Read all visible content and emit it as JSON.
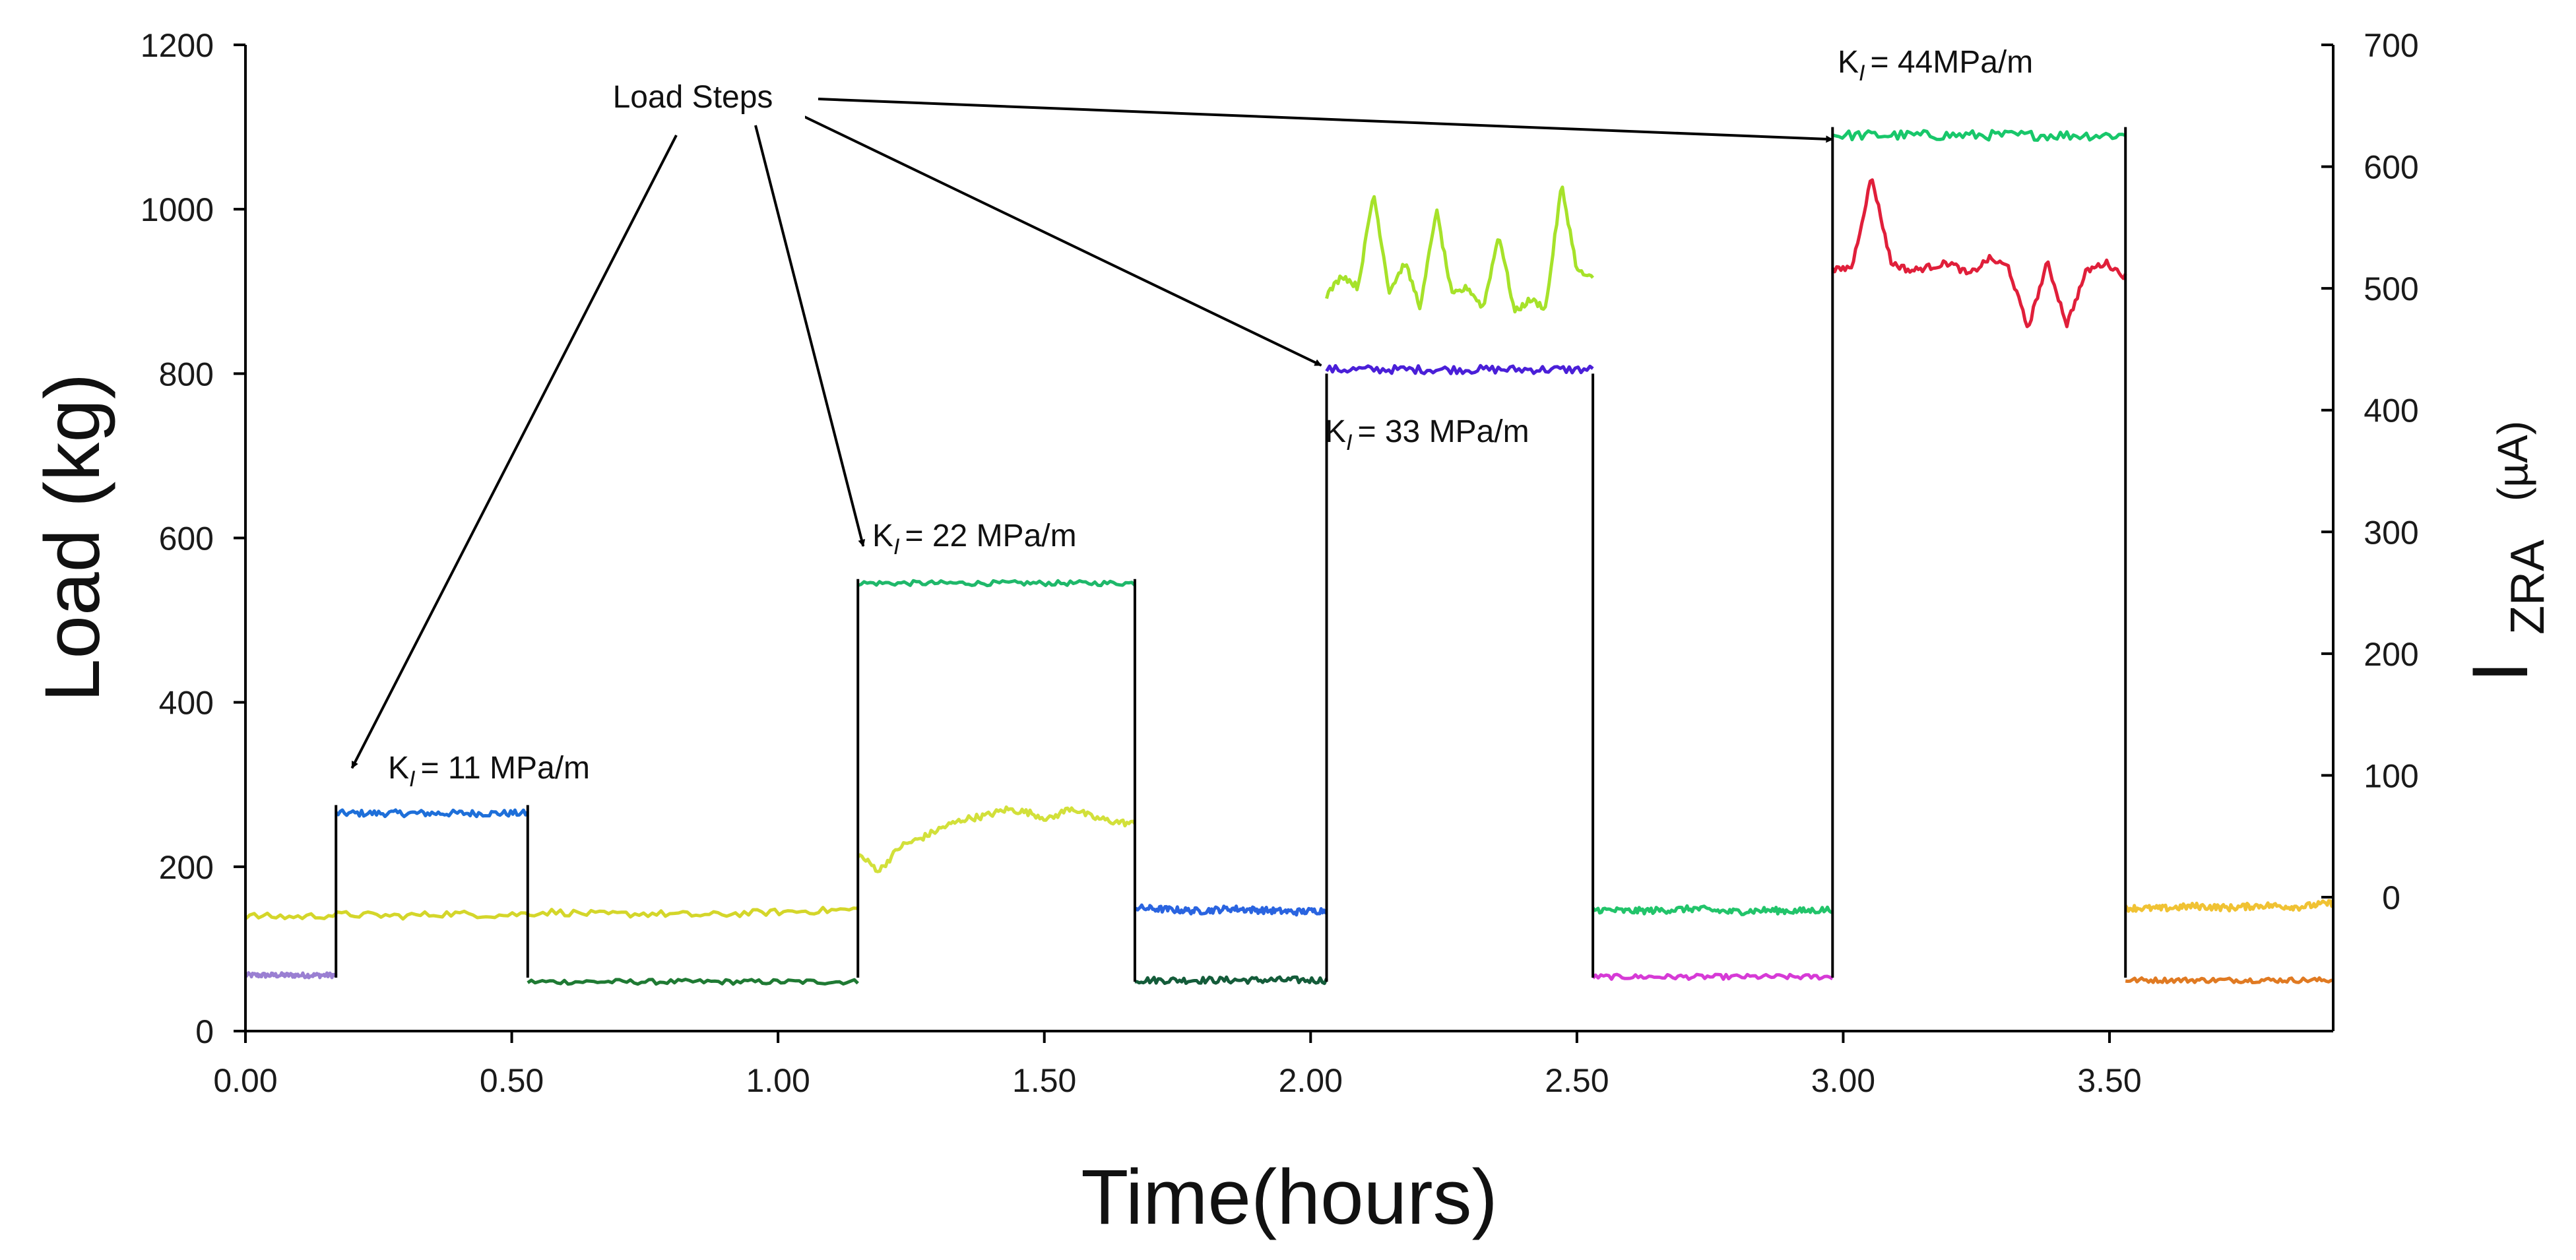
{
  "chart_data": {
    "type": "line",
    "title": "",
    "xlabel": "Time(hours)",
    "ylabel_left": "Load (kg)",
    "ylabel_right": {
      "main": "I",
      "sub": "ZRA",
      "unit": "(µA)"
    },
    "xlim": [
      0,
      3.92
    ],
    "ylim_left": [
      0,
      1200
    ],
    "ylim_right": [
      -110,
      700
    ],
    "x_ticks": [
      {
        "value": 0,
        "label": "0.00"
      },
      {
        "value": 0.5,
        "label": "0.50"
      },
      {
        "value": 1.0,
        "label": "1.00"
      },
      {
        "value": 1.5,
        "label": "1.50"
      },
      {
        "value": 2.0,
        "label": "2.00"
      },
      {
        "value": 2.5,
        "label": "2.50"
      },
      {
        "value": 3.0,
        "label": "3.00"
      },
      {
        "value": 3.5,
        "label": "3.50"
      }
    ],
    "y_left_ticks": [
      {
        "value": 0,
        "label": "0"
      },
      {
        "value": 200,
        "label": "200"
      },
      {
        "value": 400,
        "label": "400"
      },
      {
        "value": 600,
        "label": "600"
      },
      {
        "value": 800,
        "label": "800"
      },
      {
        "value": 1000,
        "label": "1000"
      },
      {
        "value": 1200,
        "label": "1200"
      }
    ],
    "y_right_ticks": [
      {
        "value": 0,
        "label": "0"
      },
      {
        "value": 100,
        "label": "100"
      },
      {
        "value": 200,
        "label": "200"
      },
      {
        "value": 300,
        "label": "300"
      },
      {
        "value": 400,
        "label": "400"
      },
      {
        "value": 500,
        "label": "500"
      },
      {
        "value": 600,
        "label": "600"
      },
      {
        "value": 700,
        "label": "700"
      }
    ],
    "load_profile": {
      "color": "#000000",
      "points": [
        [
          0.17,
          65
        ],
        [
          0.17,
          275
        ],
        [
          0.53,
          275
        ],
        [
          0.53,
          65
        ],
        [
          1.15,
          65
        ],
        [
          1.15,
          550
        ],
        [
          1.67,
          550
        ],
        [
          1.67,
          60
        ],
        [
          2.03,
          60
        ],
        [
          2.03,
          800
        ],
        [
          2.53,
          800
        ],
        [
          2.53,
          65
        ],
        [
          2.98,
          65
        ],
        [
          2.98,
          1100
        ],
        [
          3.53,
          1100
        ],
        [
          3.53,
          65
        ]
      ]
    },
    "load_segments": [
      {
        "x0": 0.0,
        "x1": 0.17,
        "level": 68,
        "noise": 3,
        "color": "#9a7fd2"
      },
      {
        "x0": 0.17,
        "x1": 0.53,
        "level": 265,
        "noise": 4,
        "color": "#1e6fd9"
      },
      {
        "x0": 0.53,
        "x1": 1.15,
        "level": 60,
        "noise": 3,
        "color": "#1f7a33"
      },
      {
        "x0": 1.15,
        "x1": 1.67,
        "level": 545,
        "noise": 3,
        "color": "#1fb86a"
      },
      {
        "x0": 1.67,
        "x1": 2.03,
        "level": 62,
        "noise": 4,
        "color": "#145c3a"
      },
      {
        "x0": 2.03,
        "x1": 2.53,
        "level": 805,
        "noise": 5,
        "color": "#4a1fd8"
      },
      {
        "x0": 2.53,
        "x1": 2.98,
        "level": 66,
        "noise": 3,
        "color": "#d63ad6"
      },
      {
        "x0": 2.98,
        "x1": 3.53,
        "level": 1090,
        "noise": 6,
        "color": "#18c76a"
      },
      {
        "x0": 3.53,
        "x1": 3.92,
        "level": 62,
        "noise": 3,
        "color": "#e07a22"
      }
    ],
    "izra_segments": [
      {
        "x0": 0.0,
        "x1": 1.15,
        "values": [
          140,
          139,
          142,
          140,
          143,
          141,
          145,
          142,
          143,
          141,
          144,
          146,
          148
        ],
        "color": "#d4d62a"
      },
      {
        "x0": 1.15,
        "x1": 1.67,
        "values": [
          215,
          195,
          225,
          235,
          248,
          258,
          262,
          270,
          266,
          258,
          272,
          260,
          255,
          252
        ],
        "color": "#d2e03a"
      },
      {
        "x0": 1.67,
        "x1": 2.03,
        "values": [
          150,
          148,
          146,
          149,
          147,
          145,
          147
        ],
        "color": "#2a64e0"
      },
      {
        "x0": 2.03,
        "x1": 2.53,
        "values": [
          895,
          920,
          905,
          1020,
          900,
          935,
          880,
          1000,
          895,
          905,
          880,
          970,
          875,
          890,
          880,
          1030,
          925,
          915
        ],
        "color": "#a6e22a"
      },
      {
        "x0": 2.53,
        "x1": 2.98,
        "values": [
          148,
          146,
          147,
          149,
          145,
          147,
          146,
          148
        ],
        "color": "#22c46a"
      },
      {
        "x0": 2.98,
        "x1": 3.53,
        "values": [
          925,
          930,
          1040,
          935,
          925,
          930,
          935,
          920,
          940,
          930,
          855,
          935,
          860,
          925,
          935,
          918
        ],
        "color": "#e01f3a"
      },
      {
        "x0": 3.53,
        "x1": 3.92,
        "values": [
          150,
          149,
          152,
          150,
          153,
          151,
          156
        ],
        "color": "#f0c233"
      }
    ],
    "annotations": {
      "load_steps": "Load Steps",
      "k1": {
        "prefix": "K",
        "sub": "I",
        "text": "= 11 MPa/m"
      },
      "k2": {
        "prefix": "K",
        "sub": "I",
        "text": "= 22 MPa/m"
      },
      "k3": {
        "prefix": "K",
        "sub": "I",
        "text": "= 33 MPa/m"
      },
      "k4": {
        "prefix": "K",
        "sub": "I",
        "text": "= 44MPa/m"
      }
    },
    "arrows": [
      {
        "to_x": 0.2,
        "to_load": 320
      },
      {
        "to_x": 1.16,
        "to_load": 590
      },
      {
        "to_x": 2.02,
        "to_load": 810
      },
      {
        "to_x": 2.98,
        "to_load": 1085
      }
    ]
  }
}
